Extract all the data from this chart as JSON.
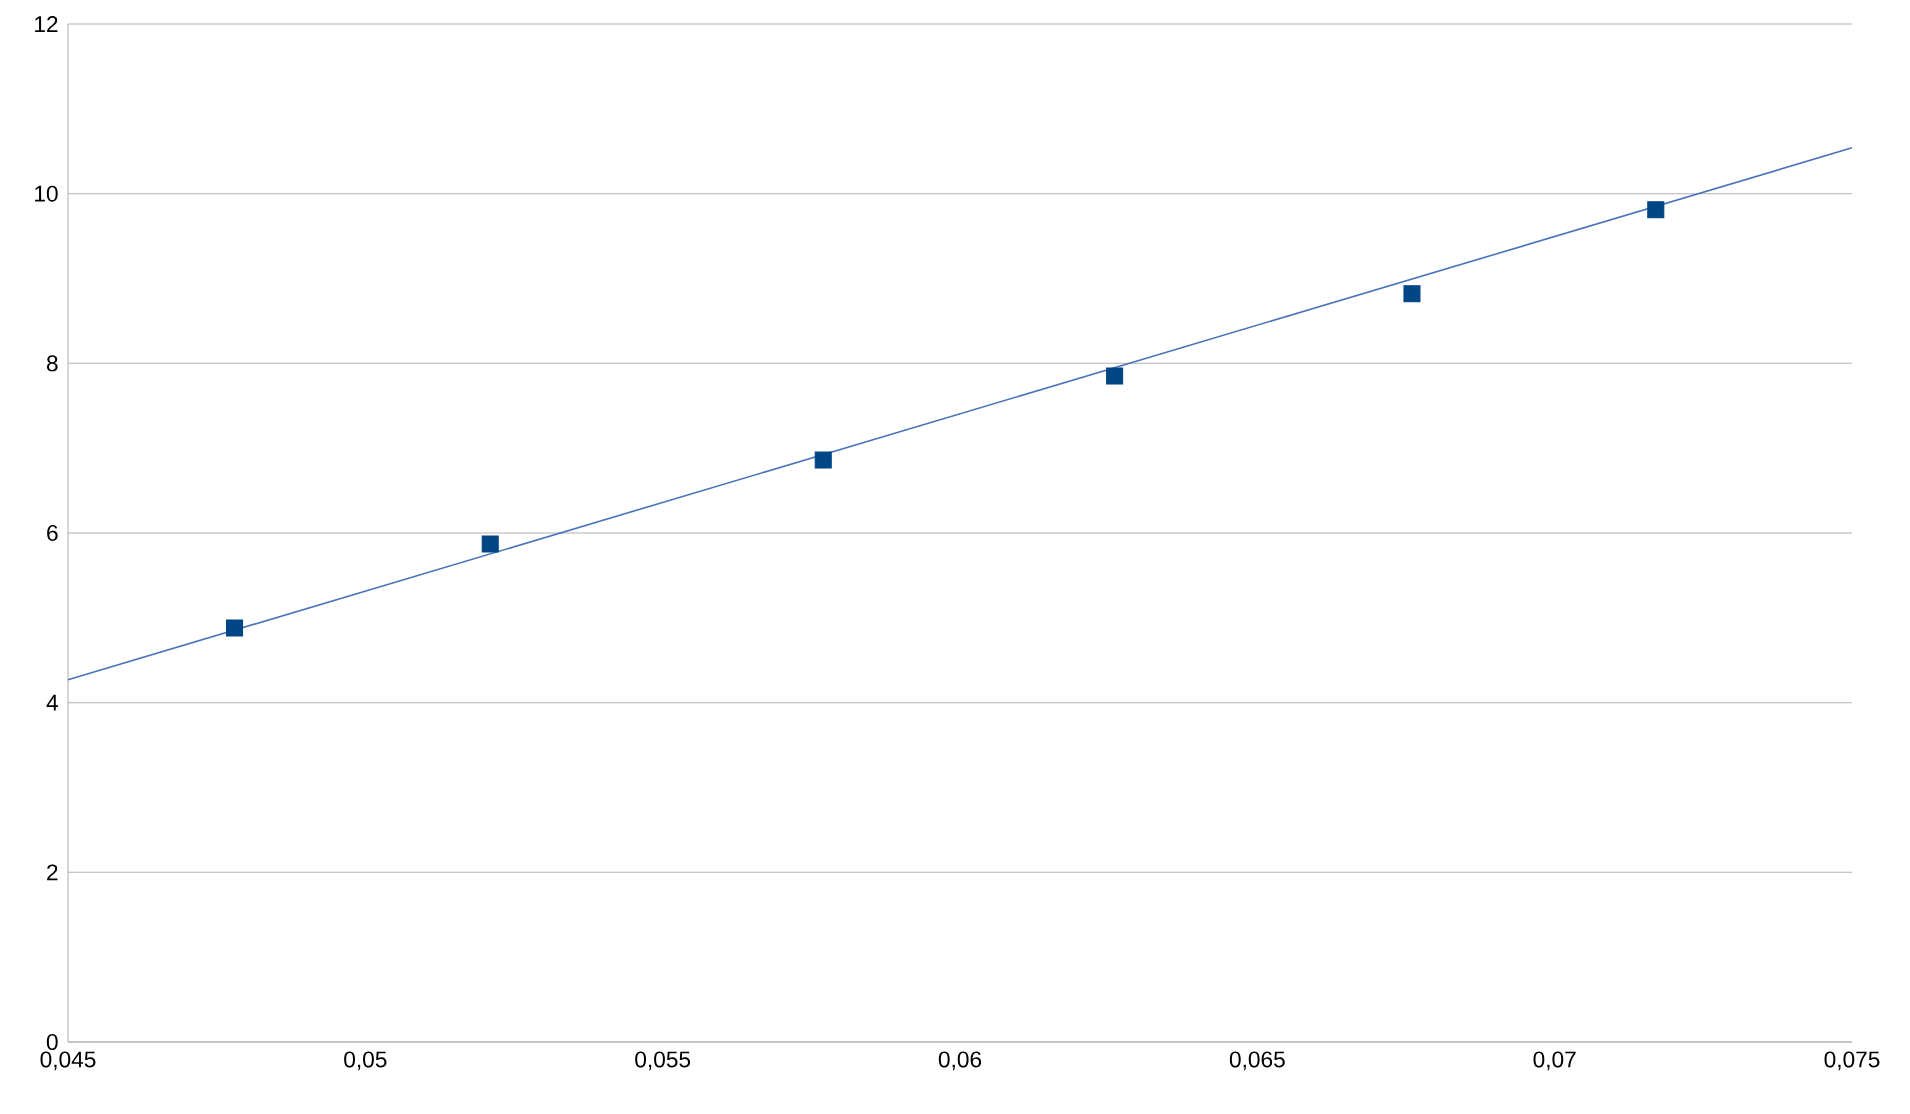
{
  "chart_data": {
    "type": "scatter",
    "xlim": [
      0.045,
      0.075
    ],
    "ylim": [
      0,
      12
    ],
    "xticks": [
      {
        "value": 0.045,
        "label": "0,045"
      },
      {
        "value": 0.05,
        "label": "0,05"
      },
      {
        "value": 0.055,
        "label": "0,055"
      },
      {
        "value": 0.06,
        "label": "0,06"
      },
      {
        "value": 0.065,
        "label": "0,065"
      },
      {
        "value": 0.07,
        "label": "0,07"
      },
      {
        "value": 0.075,
        "label": "0,075"
      }
    ],
    "yticks": [
      0,
      2,
      4,
      6,
      8,
      10,
      12
    ],
    "grid": "y",
    "series": [
      {
        "marker": "square",
        "color": "#004586",
        "x": [
          0.0478,
          0.0521,
          0.0577,
          0.0626,
          0.0676,
          0.0717
        ],
        "values": [
          4.88,
          5.87,
          6.86,
          7.85,
          8.82,
          9.81
        ]
      },
      {
        "type": "line",
        "marker": "none",
        "line_style": "solid",
        "color": "#4a72b8",
        "x": [
          0.045,
          0.075
        ],
        "values": [
          4.27,
          10.54
        ]
      }
    ]
  }
}
